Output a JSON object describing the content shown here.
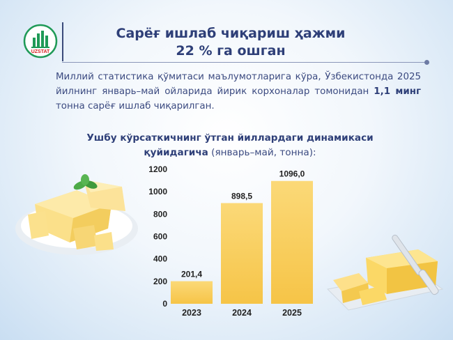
{
  "logo": {
    "label": "UZSTAT"
  },
  "header": {
    "title_line1": "Сарёғ ишлаб чиқариш ҳажми",
    "title_line2": "22 % га ошган"
  },
  "intro": {
    "text_before": "Миллий статистика қўмитаси маълумотларига кўра, Ўзбекистонда 2025 йилнинг январь–май ойларида йирик корхоналар томонидан ",
    "text_bold": "1,1 минг",
    "text_after": " тонна сарёғ ишлаб чиқарилган."
  },
  "chart_heading": {
    "line1": "Ушбу кўрсаткичнинг ўтган йиллардаги динамикаси",
    "line2_bold": "қуйидагича",
    "line2_normal": " (январь–май, тонна):"
  },
  "colors": {
    "bar_top": "#fbd978",
    "bar_bottom": "#f6c447",
    "title": "#2e3f78",
    "text": "#3b4a80"
  },
  "chart_data": {
    "type": "bar",
    "categories": [
      "2023",
      "2024",
      "2025"
    ],
    "values": [
      201.4,
      898.5,
      1096.0
    ],
    "value_labels": [
      "201,4",
      "898,5",
      "1096,0"
    ],
    "yticks": [
      0,
      200,
      400,
      600,
      800,
      1000,
      1200
    ],
    "ylim": [
      0,
      1200
    ],
    "grid": false
  }
}
